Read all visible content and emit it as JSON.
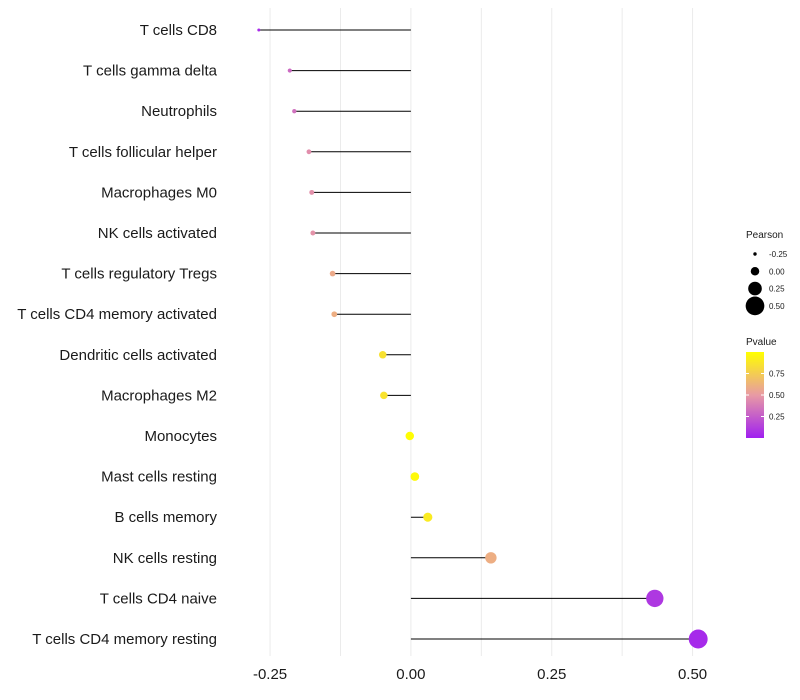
{
  "chart_data": {
    "type": "lollipop",
    "categories": [
      "T cells CD8",
      "T cells gamma delta",
      "Neutrophils",
      "T cells follicular helper",
      "Macrophages M0",
      "NK cells activated",
      "T cells regulatory  Tregs ",
      "T cells CD4 memory activated",
      "Dendritic cells activated",
      "Macrophages M2",
      "Monocytes",
      "Mast cells resting",
      "B cells memory",
      "NK cells resting",
      "T cells CD4 naive",
      "T cells CD4 memory resting"
    ],
    "pearson": [
      -0.27,
      -0.215,
      -0.207,
      -0.181,
      -0.176,
      -0.174,
      -0.139,
      -0.136,
      -0.05,
      -0.048,
      -0.002,
      0.007,
      0.03,
      0.142,
      0.433,
      0.51
    ],
    "pvalue": [
      0.05,
      0.3,
      0.33,
      0.45,
      0.46,
      0.47,
      0.58,
      0.6,
      0.85,
      0.86,
      0.99,
      0.97,
      0.9,
      0.6,
      0.1,
      0.04
    ],
    "xlim": [
      -0.33,
      0.57
    ],
    "x_ticks": [
      {
        "value": -0.25,
        "label": "-0.25"
      },
      {
        "value": 0.0,
        "label": "0.00"
      },
      {
        "value": 0.25,
        "label": "0.25"
      },
      {
        "value": 0.5,
        "label": "0.50"
      }
    ],
    "grid": true,
    "legend_size": {
      "title": "Pearson",
      "entries": [
        {
          "value": -0.25,
          "label": "-0.25"
        },
        {
          "value": 0.0,
          "label": "0.00"
        },
        {
          "value": 0.25,
          "label": "0.25"
        },
        {
          "value": 0.5,
          "label": "0.50"
        }
      ]
    },
    "legend_color": {
      "title": "Pvalue",
      "entries": [
        {
          "value": 0.75,
          "label": "0.75"
        },
        {
          "value": 0.5,
          "label": "0.50"
        },
        {
          "value": 0.25,
          "label": "0.25"
        }
      ],
      "low_color": "#a020f0",
      "high_color": "#ffff00",
      "mid_color": "#e89aa4"
    },
    "segment_color": "#000000"
  }
}
